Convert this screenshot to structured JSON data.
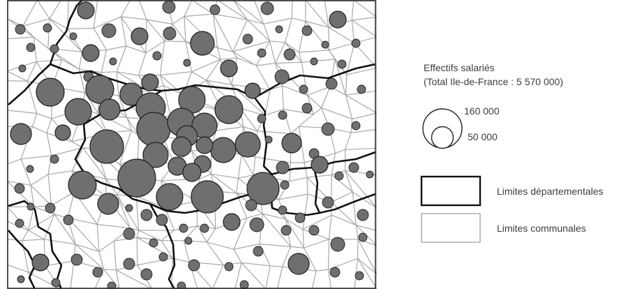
{
  "legend": {
    "title": "Effectifs salariés",
    "total": "(Total Ile-de-France : 5 570 000)",
    "size_large": "160 000",
    "size_small": "50 000",
    "dept_limits": "Limites départementales",
    "commune_limits": "Limites communales"
  },
  "colors": {
    "circle_fill": "#6f6f6f",
    "circle_stroke": "#1f1f1f",
    "dept_line": "#111111",
    "commune_line": "#a8a8a8",
    "background": "#ffffff"
  }
}
